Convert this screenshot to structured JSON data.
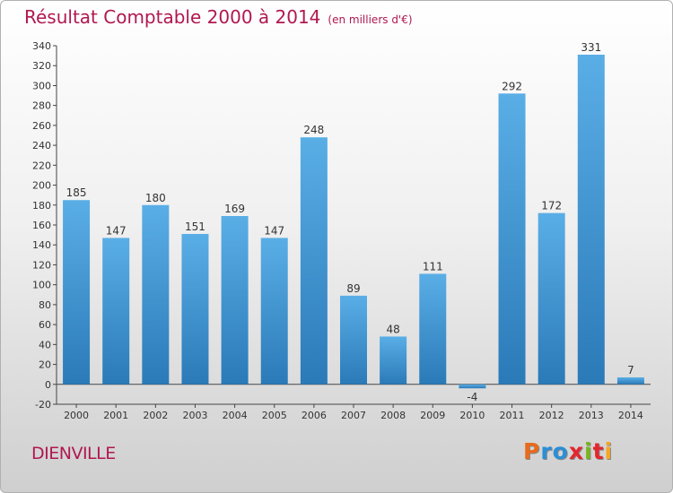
{
  "header": {
    "title": "Résultat Comptable 2000 à 2014",
    "subtitle": "(en milliers d'€)"
  },
  "footer": {
    "commune": "DIENVILLE",
    "logo": [
      "P",
      "r",
      "o",
      "x",
      "i",
      "t",
      "i"
    ],
    "logo_colors": [
      "#e86a1c",
      "#2a8fd6",
      "#2a8fd6",
      "#e3262e",
      "#7ab51d",
      "#e3262e",
      "#f5a623"
    ]
  },
  "chart_data": {
    "type": "bar",
    "title": "Résultat Comptable 2000 à 2014",
    "subtitle": "(en milliers d'€)",
    "categories": [
      "2000",
      "2001",
      "2002",
      "2003",
      "2004",
      "2005",
      "2006",
      "2007",
      "2008",
      "2009",
      "2010",
      "2011",
      "2012",
      "2013",
      "2014"
    ],
    "values": [
      185,
      147,
      180,
      151,
      169,
      147,
      248,
      89,
      48,
      111,
      -4,
      292,
      172,
      331,
      7
    ],
    "data_labels": [
      "185",
      "147",
      "180",
      "151",
      "169",
      "147",
      "248",
      "89",
      "48",
      "111",
      "-4",
      "292",
      "172",
      "331",
      "7"
    ],
    "ylim": [
      -20,
      340
    ],
    "yticks": [
      -20,
      0,
      20,
      40,
      60,
      80,
      100,
      120,
      140,
      160,
      180,
      200,
      220,
      240,
      260,
      280,
      300,
      320,
      340
    ],
    "grid": false,
    "bar_color_top": "#5aaee6",
    "bar_color_bottom": "#2a7ab8"
  }
}
